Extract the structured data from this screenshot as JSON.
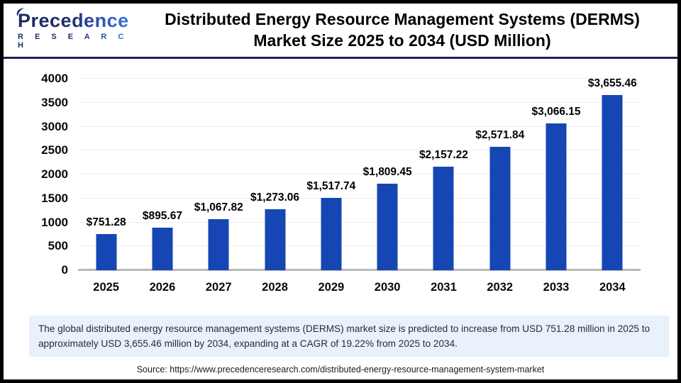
{
  "logo": {
    "brand": "Precedence",
    "sub": "R E S E A R C H"
  },
  "header": {
    "title_line1": "Distributed Energy Resource Management Systems (DERMS)",
    "title_line2": "Market Size 2025 to 2034 (USD Million)"
  },
  "chart_data": {
    "type": "bar",
    "title": "Distributed Energy Resource Management Systems (DERMS) Market Size 2025 to 2034 (USD Million)",
    "categories": [
      "2025",
      "2026",
      "2027",
      "2028",
      "2029",
      "2030",
      "2031",
      "2032",
      "2033",
      "2034"
    ],
    "values": [
      751.28,
      895.67,
      1067.82,
      1273.06,
      1517.74,
      1809.45,
      2157.22,
      2571.84,
      3066.15,
      3655.46
    ],
    "bar_labels": [
      "$751.28",
      "$895.67",
      "$1,067.82",
      "$1,273.06",
      "$1,517.74",
      "$1,809.45",
      "$2,157.22",
      "$2,571.84",
      "$3,066.15",
      "$3,655.46"
    ],
    "ylim": [
      0,
      4000
    ],
    "yticks": [
      0,
      500,
      1000,
      1500,
      2000,
      2500,
      3000,
      3500,
      4000
    ],
    "xlabel": "",
    "ylabel": "",
    "grid": true,
    "legend": "none",
    "bar_color": "#1646b3",
    "unit": "USD Million"
  },
  "note": {
    "text": "The global distributed energy resource management systems (DERMS) market size is predicted to increase from USD 751.28 million in 2025 to approximately USD 3,655.46 million by 2034, expanding at a CAGR of 19.22% from 2025 to 2034."
  },
  "source": {
    "text": "Source: https://www.precedenceresearch.com/distributed-energy-resource-management-system-market"
  }
}
